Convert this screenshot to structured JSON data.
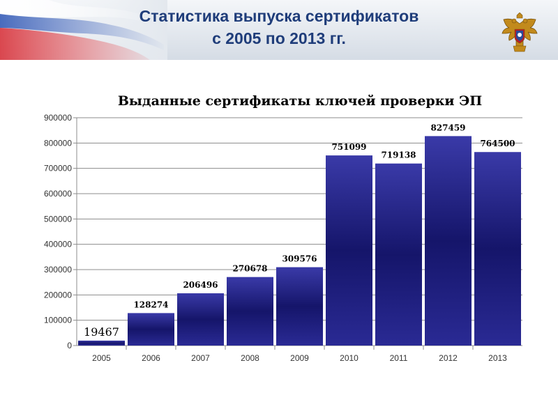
{
  "slide": {
    "title_line1": "Статистика выпуска сертификатов",
    "title_line2": "с 2005 по 2013 гг."
  },
  "colors": {
    "bar_top": "#3a3aa8",
    "bar_mid": "#15156a",
    "bar_bottom": "#2a2a94",
    "title": "#1f3d7a",
    "grid": "#8c8c8c"
  },
  "icons": {
    "logo": "double-headed-eagle-emblem-icon",
    "header_decoration": "russian-flag-wave"
  },
  "chart_data": {
    "type": "bar",
    "title": "Выданные сертификаты ключей проверки ЭП",
    "categories": [
      "2005",
      "2006",
      "2007",
      "2008",
      "2009",
      "2010",
      "2011",
      "2012",
      "2013"
    ],
    "values": [
      19467,
      128274,
      206496,
      270678,
      309576,
      751099,
      719138,
      827459,
      764500
    ],
    "data_labels": [
      "19467",
      "128274",
      "206496",
      "270678",
      "309576",
      "751099",
      "719138",
      "827459",
      "764500"
    ],
    "y_ticks": [
      "0",
      "100000",
      "200000",
      "300000",
      "400000",
      "500000",
      "600000",
      "700000",
      "800000",
      "900000"
    ],
    "ylim": [
      0,
      900000
    ],
    "grid": true,
    "legend": "none"
  }
}
